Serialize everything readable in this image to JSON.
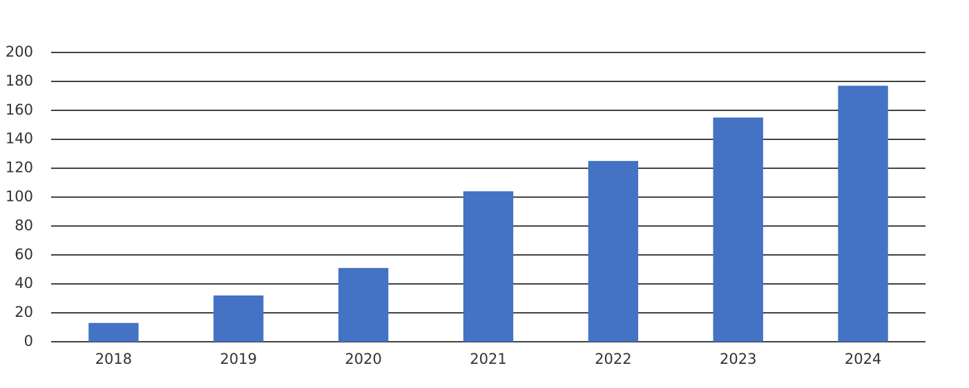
{
  "chart_data": {
    "type": "bar",
    "categories": [
      "2018",
      "2019",
      "2020",
      "2021",
      "2022",
      "2023",
      "2024"
    ],
    "values": [
      13,
      32,
      51,
      104,
      125,
      155,
      177
    ],
    "color": "#4472c4",
    "ylim": [
      0,
      200
    ],
    "yticks": [
      0,
      20,
      40,
      60,
      80,
      100,
      120,
      140,
      160,
      180,
      200
    ],
    "grid": true
  }
}
